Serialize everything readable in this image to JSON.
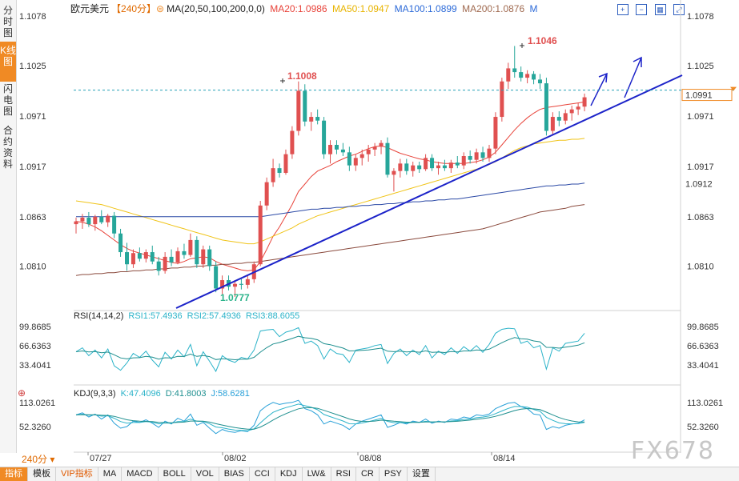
{
  "sidebar": {
    "tabs": [
      {
        "label": "分时图",
        "active": false
      },
      {
        "label": "K线图",
        "active": true
      },
      {
        "label": "闪电图",
        "active": false
      },
      {
        "label": "合约资料",
        "active": false
      }
    ]
  },
  "header": {
    "symbol": "欧元美元",
    "period": "【240分】",
    "ma_label": "MA(20,50,100,200,0,0)",
    "ma20": "MA20:1.0986",
    "ma50": "MA50:1.0947",
    "ma100": "MA100:1.0899",
    "ma200": "MA200:1.0876",
    "m": "M"
  },
  "colors": {
    "up": "#e05050",
    "down": "#26a69a",
    "ma20": "#e8433a",
    "ma50": "#f0c419",
    "ma100": "#2c4aa6",
    "ma200": "#8b4b3e",
    "trendline": "#1d24c9",
    "rsi": "#2bb3c9",
    "kdj_k": "#2bb3c9",
    "kdj_d": "#1e8f8f",
    "kdj_j": "#28a0d8"
  },
  "price_axis": {
    "ticks": [
      "1.1078",
      "1.1025",
      "1.0971",
      "1.0917",
      "1.0863",
      "1.0810"
    ],
    "current_price": "1.0991",
    "secondary_price": "1.0912"
  },
  "annotations": {
    "high1": "1.1008",
    "high2": "1.1046",
    "low1": "1.0777"
  },
  "dates": [
    "07/27",
    "08/02",
    "08/08",
    "08/14"
  ],
  "rsi": {
    "label": "RSI(14,14,2)",
    "rsi1": "RSI1:57.4936",
    "rsi2": "RSI2:57.4936",
    "rsi3": "RSI3:88.6055",
    "ticks": [
      "99.8685",
      "66.6363",
      "33.4041"
    ]
  },
  "kdj": {
    "label": "KDJ(9,3,3)",
    "k": "K:47.4096",
    "d": "D:41.8003",
    "j": "J:58.6281",
    "ticks": [
      "113.0261",
      "52.3260"
    ]
  },
  "bottom_tabs": [
    "指标",
    "模板",
    "VIP指标",
    "MA",
    "MACD",
    "BOLL",
    "VOL",
    "BIAS",
    "CCI",
    "KDJ",
    "LW&",
    "RSI",
    "CR",
    "PSY",
    "设置"
  ],
  "period_tag": "240分 ▾",
  "watermark": "FX678",
  "chart_data": {
    "type": "candlestick",
    "title": "欧元美元 240分",
    "ylim": [
      1.0765,
      1.1085
    ],
    "candles": [
      {
        "o": 1.0855,
        "h": 1.0862,
        "l": 1.0845,
        "c": 1.0858
      },
      {
        "o": 1.0858,
        "h": 1.0866,
        "l": 1.085,
        "c": 1.0862
      },
      {
        "o": 1.0862,
        "h": 1.0868,
        "l": 1.0852,
        "c": 1.0855
      },
      {
        "o": 1.0855,
        "h": 1.0865,
        "l": 1.0848,
        "c": 1.0863
      },
      {
        "o": 1.0863,
        "h": 1.087,
        "l": 1.0855,
        "c": 1.0857
      },
      {
        "o": 1.0857,
        "h": 1.0866,
        "l": 1.0852,
        "c": 1.0864
      },
      {
        "o": 1.0864,
        "h": 1.0868,
        "l": 1.084,
        "c": 1.0845
      },
      {
        "o": 1.0845,
        "h": 1.085,
        "l": 1.082,
        "c": 1.0825
      },
      {
        "o": 1.0825,
        "h": 1.0835,
        "l": 1.0805,
        "c": 1.0812
      },
      {
        "o": 1.0812,
        "h": 1.0828,
        "l": 1.0808,
        "c": 1.0824
      },
      {
        "o": 1.0824,
        "h": 1.083,
        "l": 1.0815,
        "c": 1.0818
      },
      {
        "o": 1.0818,
        "h": 1.0828,
        "l": 1.0814,
        "c": 1.0825
      },
      {
        "o": 1.0825,
        "h": 1.0832,
        "l": 1.0812,
        "c": 1.0815
      },
      {
        "o": 1.0815,
        "h": 1.082,
        "l": 1.08,
        "c": 1.0805
      },
      {
        "o": 1.0805,
        "h": 1.0825,
        "l": 1.0802,
        "c": 1.082
      },
      {
        "o": 1.082,
        "h": 1.0828,
        "l": 1.081,
        "c": 1.0814
      },
      {
        "o": 1.0814,
        "h": 1.083,
        "l": 1.0812,
        "c": 1.0826
      },
      {
        "o": 1.0826,
        "h": 1.0834,
        "l": 1.0818,
        "c": 1.0822
      },
      {
        "o": 1.0822,
        "h": 1.0845,
        "l": 1.082,
        "c": 1.0838
      },
      {
        "o": 1.0838,
        "h": 1.0842,
        "l": 1.0808,
        "c": 1.0812
      },
      {
        "o": 1.0812,
        "h": 1.0832,
        "l": 1.0808,
        "c": 1.0828
      },
      {
        "o": 1.0828,
        "h": 1.0832,
        "l": 1.0805,
        "c": 1.081
      },
      {
        "o": 1.081,
        "h": 1.0815,
        "l": 1.0782,
        "c": 1.0786
      },
      {
        "o": 1.0786,
        "h": 1.08,
        "l": 1.078,
        "c": 1.0795
      },
      {
        "o": 1.0795,
        "h": 1.08,
        "l": 1.0784,
        "c": 1.0788
      },
      {
        "o": 1.0788,
        "h": 1.0795,
        "l": 1.0777,
        "c": 1.0791
      },
      {
        "o": 1.0791,
        "h": 1.0797,
        "l": 1.0785,
        "c": 1.079
      },
      {
        "o": 1.079,
        "h": 1.08,
        "l": 1.0786,
        "c": 1.0796
      },
      {
        "o": 1.0796,
        "h": 1.0815,
        "l": 1.0792,
        "c": 1.0812
      },
      {
        "o": 1.0812,
        "h": 1.088,
        "l": 1.081,
        "c": 1.0875
      },
      {
        "o": 1.0875,
        "h": 1.0905,
        "l": 1.087,
        "c": 1.09
      },
      {
        "o": 1.09,
        "h": 1.0925,
        "l": 1.0895,
        "c": 1.0915
      },
      {
        "o": 1.0915,
        "h": 1.092,
        "l": 1.0905,
        "c": 1.091
      },
      {
        "o": 1.091,
        "h": 1.0935,
        "l": 1.0908,
        "c": 1.093
      },
      {
        "o": 1.093,
        "h": 1.096,
        "l": 1.0925,
        "c": 1.0955
      },
      {
        "o": 1.0955,
        "h": 1.1008,
        "l": 1.095,
        "c": 1.0998
      },
      {
        "o": 1.0998,
        "h": 1.1005,
        "l": 1.096,
        "c": 1.0965
      },
      {
        "o": 1.0965,
        "h": 1.0975,
        "l": 1.0955,
        "c": 1.097
      },
      {
        "o": 1.097,
        "h": 1.0978,
        "l": 1.0962,
        "c": 1.0966
      },
      {
        "o": 1.0966,
        "h": 1.097,
        "l": 1.0925,
        "c": 1.093
      },
      {
        "o": 1.093,
        "h": 1.0945,
        "l": 1.092,
        "c": 1.094
      },
      {
        "o": 1.094,
        "h": 1.0945,
        "l": 1.093,
        "c": 1.0935
      },
      {
        "o": 1.0935,
        "h": 1.0942,
        "l": 1.0928,
        "c": 1.0932
      },
      {
        "o": 1.0932,
        "h": 1.0938,
        "l": 1.0912,
        "c": 1.0918
      },
      {
        "o": 1.0918,
        "h": 1.093,
        "l": 1.0912,
        "c": 1.0926
      },
      {
        "o": 1.0926,
        "h": 1.0935,
        "l": 1.0918,
        "c": 1.093
      },
      {
        "o": 1.093,
        "h": 1.094,
        "l": 1.0922,
        "c": 1.0935
      },
      {
        "o": 1.0935,
        "h": 1.0942,
        "l": 1.0928,
        "c": 1.0938
      },
      {
        "o": 1.0938,
        "h": 1.0945,
        "l": 1.093,
        "c": 1.0942
      },
      {
        "o": 1.0942,
        "h": 1.0948,
        "l": 1.0905,
        "c": 1.0908
      },
      {
        "o": 1.0908,
        "h": 1.0915,
        "l": 1.089,
        "c": 1.0912
      },
      {
        "o": 1.0912,
        "h": 1.0925,
        "l": 1.0905,
        "c": 1.092
      },
      {
        "o": 1.092,
        "h": 1.0925,
        "l": 1.0908,
        "c": 1.0912
      },
      {
        "o": 1.0912,
        "h": 1.0922,
        "l": 1.0906,
        "c": 1.0918
      },
      {
        "o": 1.0918,
        "h": 1.0922,
        "l": 1.091,
        "c": 1.0914
      },
      {
        "o": 1.0914,
        "h": 1.093,
        "l": 1.0912,
        "c": 1.0926
      },
      {
        "o": 1.0926,
        "h": 1.093,
        "l": 1.0912,
        "c": 1.0915
      },
      {
        "o": 1.0915,
        "h": 1.0922,
        "l": 1.0908,
        "c": 1.0918
      },
      {
        "o": 1.0918,
        "h": 1.0924,
        "l": 1.0912,
        "c": 1.0915
      },
      {
        "o": 1.0915,
        "h": 1.0924,
        "l": 1.091,
        "c": 1.0921
      },
      {
        "o": 1.0921,
        "h": 1.0928,
        "l": 1.0915,
        "c": 1.0918
      },
      {
        "o": 1.0918,
        "h": 1.0932,
        "l": 1.0914,
        "c": 1.0928
      },
      {
        "o": 1.0928,
        "h": 1.0934,
        "l": 1.092,
        "c": 1.0924
      },
      {
        "o": 1.0924,
        "h": 1.0936,
        "l": 1.092,
        "c": 1.0932
      },
      {
        "o": 1.0932,
        "h": 1.0938,
        "l": 1.0922,
        "c": 1.0926
      },
      {
        "o": 1.0926,
        "h": 1.094,
        "l": 1.0922,
        "c": 1.0936
      },
      {
        "o": 1.0936,
        "h": 1.0975,
        "l": 1.093,
        "c": 1.097
      },
      {
        "o": 1.097,
        "h": 1.1012,
        "l": 1.0965,
        "c": 1.1008
      },
      {
        "o": 1.1008,
        "h": 1.1028,
        "l": 1.1,
        "c": 1.1022
      },
      {
        "o": 1.1022,
        "h": 1.1046,
        "l": 1.1012,
        "c": 1.1018
      },
      {
        "o": 1.1018,
        "h": 1.1024,
        "l": 1.1008,
        "c": 1.1012
      },
      {
        "o": 1.1012,
        "h": 1.102,
        "l": 1.1006,
        "c": 1.1016
      },
      {
        "o": 1.1016,
        "h": 1.1019,
        "l": 1.1005,
        "c": 1.101
      },
      {
        "o": 1.101,
        "h": 1.1016,
        "l": 1.1,
        "c": 1.1006
      },
      {
        "o": 1.1006,
        "h": 1.1012,
        "l": 1.095,
        "c": 1.0955
      },
      {
        "o": 1.0955,
        "h": 1.0975,
        "l": 1.095,
        "c": 1.097
      },
      {
        "o": 1.097,
        "h": 1.0976,
        "l": 1.096,
        "c": 1.0966
      },
      {
        "o": 1.0966,
        "h": 1.0978,
        "l": 1.0962,
        "c": 1.0974
      },
      {
        "o": 1.0974,
        "h": 1.0982,
        "l": 1.0966,
        "c": 1.0978
      },
      {
        "o": 1.0978,
        "h": 1.0985,
        "l": 1.0972,
        "c": 1.0981
      },
      {
        "o": 1.0981,
        "h": 1.0995,
        "l": 1.0976,
        "c": 1.0991
      }
    ],
    "ma_series": [
      {
        "name": "MA20",
        "values": [
          1.0858,
          1.0857,
          1.0855,
          1.0852,
          1.0848,
          1.0843,
          1.0838,
          1.0833,
          1.0829,
          1.0826,
          1.0824,
          1.0822,
          1.082,
          1.0818,
          1.0816,
          1.0814,
          1.0813,
          1.0815,
          1.0818,
          1.0819,
          1.082,
          1.0819,
          1.0815,
          1.0812,
          1.081,
          1.0808,
          1.0806,
          1.0805,
          1.0806,
          1.0815,
          1.0828,
          1.0842,
          1.0852,
          1.0864,
          1.0876,
          1.089,
          1.0898,
          1.0906,
          1.0912,
          1.0915,
          1.0918,
          1.0922,
          1.0925,
          1.0928,
          1.093,
          1.0933,
          1.0936,
          1.0938,
          1.0939,
          1.0937,
          1.0934,
          1.0931,
          1.0929,
          1.0927,
          1.0925,
          1.0924,
          1.0922,
          1.0921,
          1.092,
          1.092,
          1.092,
          1.092,
          1.0921,
          1.0922,
          1.0924,
          1.0927,
          1.0932,
          1.094,
          1.0948,
          1.0956,
          1.0963,
          1.0969,
          1.0974,
          1.0978,
          1.098,
          1.0981,
          1.0982,
          1.0983,
          1.0984,
          1.0985,
          1.0986
        ]
      },
      {
        "name": "MA50",
        "values": [
          1.088,
          1.0879,
          1.0878,
          1.0877,
          1.0876,
          1.0874,
          1.0872,
          1.087,
          1.0868,
          1.0866,
          1.0864,
          1.0862,
          1.086,
          1.0858,
          1.0856,
          1.0854,
          1.0852,
          1.085,
          1.0848,
          1.0846,
          1.0844,
          1.0842,
          1.084,
          1.0838,
          1.0837,
          1.0836,
          1.0835,
          1.0834,
          1.0834,
          1.0836,
          1.0839,
          1.0842,
          1.0845,
          1.0848,
          1.0851,
          1.0855,
          1.0858,
          1.0861,
          1.0864,
          1.0866,
          1.0868,
          1.087,
          1.0872,
          1.0874,
          1.0876,
          1.0878,
          1.088,
          1.0882,
          1.0884,
          1.0886,
          1.0888,
          1.089,
          1.0892,
          1.0894,
          1.0896,
          1.0898,
          1.09,
          1.0902,
          1.0904,
          1.0906,
          1.0908,
          1.091,
          1.0912,
          1.0914,
          1.0916,
          1.0919,
          1.0922,
          1.0926,
          1.093,
          1.0934,
          1.0937,
          1.0939,
          1.0941,
          1.0942,
          1.0943,
          1.0944,
          1.0945,
          1.0945,
          1.0946,
          1.0946,
          1.0947
        ]
      },
      {
        "name": "MA100",
        "values": [
          1.0863,
          1.0863,
          1.0863,
          1.0863,
          1.0863,
          1.0863,
          1.0863,
          1.0863,
          1.0863,
          1.0863,
          1.0863,
          1.0863,
          1.0863,
          1.0863,
          1.0863,
          1.0863,
          1.0863,
          1.0863,
          1.0863,
          1.0863,
          1.0863,
          1.0863,
          1.0863,
          1.0863,
          1.0863,
          1.0863,
          1.0863,
          1.0863,
          1.0863,
          1.0863,
          1.0864,
          1.0865,
          1.0866,
          1.0867,
          1.0868,
          1.0869,
          1.087,
          1.0871,
          1.0871,
          1.0872,
          1.0872,
          1.0873,
          1.0873,
          1.0874,
          1.0874,
          1.0875,
          1.0875,
          1.0876,
          1.0876,
          1.0877,
          1.0877,
          1.0878,
          1.0878,
          1.0879,
          1.0879,
          1.088,
          1.088,
          1.0881,
          1.0881,
          1.0882,
          1.0882,
          1.0883,
          1.0884,
          1.0885,
          1.0886,
          1.0887,
          1.0888,
          1.0889,
          1.089,
          1.0891,
          1.0892,
          1.0893,
          1.0894,
          1.0895,
          1.0896,
          1.0896,
          1.0897,
          1.0897,
          1.0898,
          1.0898,
          1.0899
        ]
      },
      {
        "name": "MA200",
        "values": [
          1.08,
          1.0801,
          1.0801,
          1.0802,
          1.0802,
          1.0803,
          1.0803,
          1.0804,
          1.0804,
          1.0805,
          1.0805,
          1.0806,
          1.0806,
          1.0807,
          1.0807,
          1.0808,
          1.0808,
          1.0809,
          1.0809,
          1.081,
          1.081,
          1.0811,
          1.0811,
          1.0812,
          1.0812,
          1.0813,
          1.0813,
          1.0814,
          1.0814,
          1.0815,
          1.0816,
          1.0817,
          1.0818,
          1.0819,
          1.082,
          1.0821,
          1.0822,
          1.0823,
          1.0824,
          1.0825,
          1.0826,
          1.0827,
          1.0828,
          1.0829,
          1.083,
          1.0831,
          1.0832,
          1.0833,
          1.0834,
          1.0835,
          1.0836,
          1.0837,
          1.0838,
          1.0839,
          1.084,
          1.0841,
          1.0842,
          1.0843,
          1.0844,
          1.0845,
          1.0846,
          1.0847,
          1.0848,
          1.0849,
          1.085,
          1.0852,
          1.0854,
          1.0856,
          1.0858,
          1.086,
          1.0862,
          1.0864,
          1.0866,
          1.0868,
          1.0869,
          1.087,
          1.0871,
          1.0872,
          1.0874,
          1.0875,
          1.0876
        ]
      }
    ],
    "rsi_values": [
      55,
      62,
      48,
      58,
      44,
      60,
      30,
      22,
      35,
      52,
      45,
      56,
      40,
      28,
      54,
      42,
      58,
      46,
      68,
      30,
      55,
      38,
      20,
      48,
      40,
      36,
      45,
      42,
      58,
      92,
      94,
      95,
      82,
      90,
      93,
      98,
      70,
      74,
      66,
      42,
      60,
      52,
      50,
      36,
      58,
      60,
      62,
      66,
      68,
      34,
      52,
      60,
      48,
      58,
      50,
      66,
      44,
      56,
      50,
      62,
      52,
      64,
      56,
      66,
      54,
      68,
      88,
      95,
      97,
      96,
      70,
      74,
      62,
      66,
      24,
      62,
      56,
      70,
      72,
      74,
      88
    ],
    "kdj_values": [
      70,
      75,
      65,
      72,
      60,
      70,
      50,
      38,
      42,
      55,
      52,
      58,
      50,
      40,
      55,
      48,
      62,
      55,
      72,
      45,
      52,
      38,
      25,
      35,
      30,
      28,
      32,
      30,
      45,
      80,
      92,
      100,
      95,
      98,
      100,
      105,
      85,
      80,
      70,
      48,
      55,
      50,
      45,
      35,
      48,
      55,
      60,
      65,
      70,
      40,
      45,
      52,
      48,
      55,
      52,
      60,
      50,
      55,
      52,
      60,
      58,
      65,
      62,
      70,
      68,
      72,
      85,
      92,
      98,
      100,
      90,
      85,
      72,
      70,
      35,
      42,
      38,
      45,
      48,
      50,
      58
    ]
  }
}
